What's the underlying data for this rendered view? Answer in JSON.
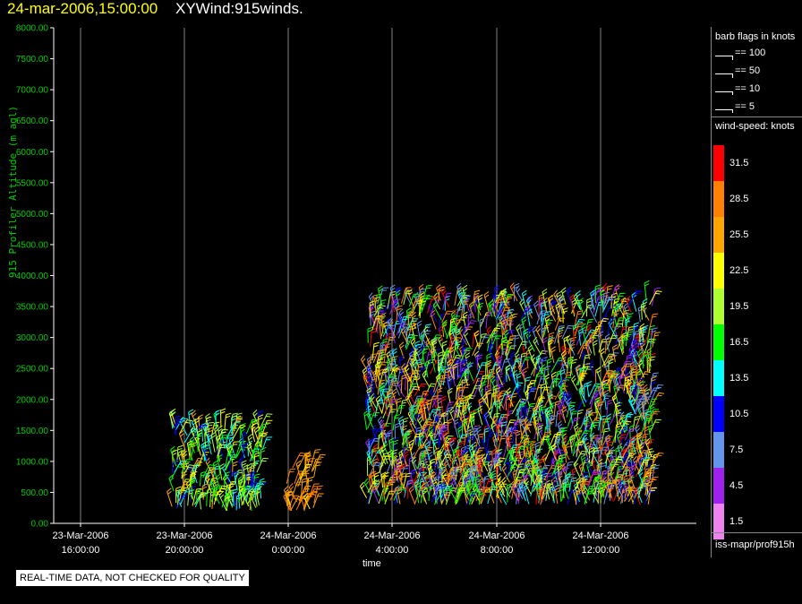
{
  "header": {
    "date_time": "24-mar-2006,15:00:00",
    "product": "XYWind:915winds."
  },
  "notice": "REAL-TIME DATA, NOT CHECKED FOR QUALITY",
  "legend": {
    "barb_title": "barb flags in knots",
    "barb_entries": [
      "== 100",
      "== 50",
      "== 10",
      "== 5"
    ],
    "speed_title": "wind-speed: knots",
    "color_scale": [
      {
        "label": "31.5",
        "color": "#ff0000"
      },
      {
        "label": "28.5",
        "color": "#ff8000"
      },
      {
        "label": "25.5",
        "color": "#ffa500"
      },
      {
        "label": "22.5",
        "color": "#ffff00"
      },
      {
        "label": "19.5",
        "color": "#adff2f"
      },
      {
        "label": "16.5",
        "color": "#00ff00"
      },
      {
        "label": "13.5",
        "color": "#00ffff"
      },
      {
        "label": "10.5",
        "color": "#0000ff"
      },
      {
        "label": "7.5",
        "color": "#6495ed"
      },
      {
        "label": "4.5",
        "color": "#a020f0"
      },
      {
        "label": "1.5",
        "color": "#ee82ee"
      }
    ],
    "source": "iss-mapr/prof915h"
  },
  "chart_data": {
    "type": "scatter",
    "xlabel": "time",
    "ylabel": "915 Profiler Altitude (m agl)",
    "ylim": [
      0,
      8000
    ],
    "xlim_hours_note": "",
    "x_ticks": [
      {
        "date": "23-Mar-2006",
        "time": "16:00:00"
      },
      {
        "date": "23-Mar-2006",
        "time": "20:00:00"
      },
      {
        "date": "24-Mar-2006",
        "time": "0:00:00"
      },
      {
        "date": "24-Mar-2006",
        "time": "4:00:00"
      },
      {
        "date": "24-Mar-2006",
        "time": "8:00:00"
      },
      {
        "date": "24-Mar-2006",
        "time": "12:00:00"
      }
    ],
    "y_ticks": [
      "0.00",
      "500.00",
      "1000.00",
      "1500.00",
      "2000.00",
      "2500.00",
      "3000.00",
      "3500.00",
      "4000.00",
      "4500.00",
      "5000.00",
      "5500.00",
      "6000.00",
      "6500.00",
      "7000.00",
      "7500.00",
      "8000.00"
    ],
    "grid": "vertical",
    "series": [
      {
        "x_start": "23-Mar-2006 19:30",
        "x_end": "23-Mar-2006 23:00",
        "alt_min": 200,
        "alt_max": 1600,
        "speed_range": [
          10.5,
          25.5
        ]
      },
      {
        "x_start": "23-Mar-2006 23:55",
        "x_end": "24-Mar-2006 01:00",
        "alt_min": 200,
        "alt_max": 1000,
        "speed_range": [
          22.5,
          28.5
        ]
      },
      {
        "x_start": "24-Mar-2006 03:00",
        "x_end": "24-Mar-2006 14:00",
        "alt_min": 300,
        "alt_max": 3600,
        "speed_range": [
          4.5,
          31.5
        ]
      }
    ]
  }
}
